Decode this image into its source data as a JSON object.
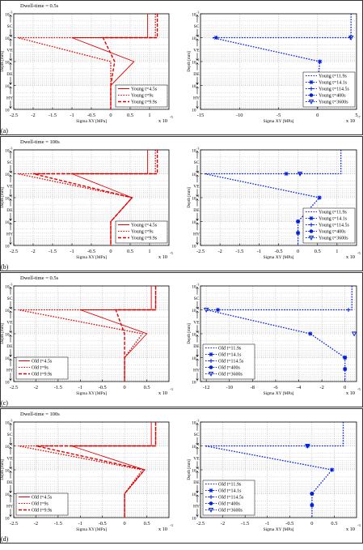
{
  "figure": {
    "panels": [
      {
        "tag": "(a)",
        "dwell": "Dwell-time = 0.5s",
        "x_unit_left": "x 10",
        "x_unit_right": "x 10"
      },
      {
        "tag": "(b)",
        "dwell": "Dwell-time = 100s",
        "x_unit_left": "x 10",
        "x_unit_right": "x 10"
      },
      {
        "tag": "(c)",
        "dwell": "Dwell-time = 0.5s",
        "x_unit_left": "x 10",
        "x_unit_right": "x 10"
      },
      {
        "tag": "(d)",
        "dwell": "Dwell-time = 100s",
        "x_unit_left": "x 10",
        "x_unit_right": "x 10"
      }
    ],
    "xlabel": "Sigma XY [MPa]",
    "ylabel": "Depth [mm]",
    "layers": [
      "SC",
      "VE",
      "DE",
      "HY"
    ]
  },
  "chart_data": [
    {
      "type": "line",
      "panel": "a-left",
      "xlabel": "Sigma XY [MPa]",
      "ylabel": "Depth [mm]",
      "yscale": "log",
      "y_reversed": true,
      "ylim": [
        0.001,
        10
      ],
      "yticks": [
        -3,
        -2,
        -1,
        0,
        1
      ],
      "xlim": [
        -2.5,
        1.5
      ],
      "xticks": [
        -2.5,
        -2,
        -1.5,
        -1,
        -0.5,
        0,
        0.5,
        1
      ],
      "x_exponent": "-5",
      "color": "#e00000",
      "legend_pos": "bottom-right",
      "series": [
        {
          "name": "Young t=4.5s",
          "style": "solid",
          "depth": [
            0.001,
            0.01,
            0.01,
            0.1,
            1,
            10
          ],
          "values": [
            0.95,
            0.95,
            -1.0,
            0.6,
            0,
            0
          ]
        },
        {
          "name": "Young t=9s",
          "style": "dotted",
          "depth": [
            0.001,
            0.01,
            0.01,
            0.1,
            1,
            10
          ],
          "values": [
            1.15,
            1.15,
            -2.4,
            0.0,
            0,
            0
          ]
        },
        {
          "name": "Young t=9.9s",
          "style": "dashed",
          "depth": [
            0.001,
            0.01,
            0.01,
            0.1,
            1,
            10
          ],
          "values": [
            1.2,
            1.2,
            -0.2,
            0.1,
            0,
            0
          ]
        }
      ]
    },
    {
      "type": "line",
      "panel": "a-right",
      "xlabel": "Sigma XY [MPa]",
      "yscale": "log",
      "y_reversed": true,
      "ylim": [
        0.001,
        10
      ],
      "xlim": [
        -15,
        5
      ],
      "xticks": [
        -15,
        -10,
        -5,
        0,
        5
      ],
      "x_exponent": "-7",
      "color": "#0020dd",
      "legend_pos": "bottom-right",
      "series": [
        {
          "name": "Young t=11.9s",
          "style": "dotted",
          "depth": [
            0.001,
            0.01,
            0.01,
            0.1,
            1,
            10
          ],
          "values": [
            4.3,
            4.3,
            -13.5,
            0.3,
            0,
            0
          ]
        },
        {
          "name": "Young t=14.1s",
          "style": "star",
          "depth": [
            0.01,
            0.1,
            1,
            3
          ],
          "values": [
            -13,
            0.3,
            0,
            0
          ]
        },
        {
          "name": "Young t=114.5s",
          "style": "plus",
          "depth": [
            0.01,
            0.1,
            1
          ],
          "values": [
            4.2,
            0.3,
            0
          ]
        },
        {
          "name": "Young t=400s",
          "style": "circle",
          "depth": [
            1,
            3
          ],
          "values": [
            0,
            0
          ]
        },
        {
          "name": "Young t=3600s",
          "style": "triangle",
          "depth": [
            0.01
          ],
          "values": [
            4.3
          ]
        }
      ]
    },
    {
      "type": "line",
      "panel": "b-left",
      "xlabel": "Sigma XY [MPa]",
      "ylabel": "Depth [mm]",
      "yscale": "log",
      "y_reversed": true,
      "ylim": [
        0.001,
        10
      ],
      "xlim": [
        -2.5,
        1.5
      ],
      "xticks": [
        -2.5,
        -2,
        -1.5,
        -1,
        -0.5,
        0,
        0.5,
        1
      ],
      "x_exponent": "-5",
      "color": "#e00000",
      "legend_pos": "bottom-right",
      "series": [
        {
          "name": "Young t=4.5s",
          "style": "solid",
          "depth": [
            0.001,
            0.01,
            0.01,
            0.1,
            1,
            10
          ],
          "values": [
            0.95,
            0.95,
            -1.0,
            0.55,
            0,
            0
          ]
        },
        {
          "name": "Young t=9s",
          "style": "dotted",
          "depth": [
            0.001,
            0.01,
            0.01,
            0.1,
            1,
            10
          ],
          "values": [
            1.15,
            1.15,
            -2.4,
            0.55,
            0,
            0
          ]
        },
        {
          "name": "Young t=9.9s",
          "style": "dashed",
          "depth": [
            0.001,
            0.01,
            0.01,
            0.1,
            1,
            10
          ],
          "values": [
            1.2,
            1.2,
            -2.0,
            0.55,
            0,
            0
          ]
        }
      ]
    },
    {
      "type": "line",
      "panel": "b-right",
      "xlabel": "Sigma XY [MPa]",
      "yscale": "log",
      "y_reversed": true,
      "ylim": [
        0.001,
        10
      ],
      "xlim": [
        -2.5,
        1.5
      ],
      "xticks": [
        -2.5,
        -2,
        -1.5,
        -1,
        -0.5,
        0,
        0.5,
        1
      ],
      "x_exponent": "-5",
      "color": "#0020dd",
      "legend_pos": "bottom-right",
      "series": [
        {
          "name": "Young t=11.9s",
          "style": "dotted",
          "depth": [
            0.001,
            0.01,
            0.01,
            0.1,
            1,
            10
          ],
          "values": [
            1.1,
            1.1,
            -2.4,
            0.55,
            0,
            0
          ]
        },
        {
          "name": "Young t=14.1s",
          "style": "star",
          "depth": [
            0.01,
            0.1,
            1,
            3
          ],
          "values": [
            -0.3,
            0.55,
            0,
            0
          ]
        },
        {
          "name": "Young t=114.5s",
          "style": "plus",
          "depth": [
            0.01,
            0.1,
            1
          ],
          "values": [
            0.05,
            0.55,
            0
          ]
        },
        {
          "name": "Young t=400s",
          "style": "circle",
          "depth": [
            1,
            3
          ],
          "values": [
            0,
            0
          ]
        },
        {
          "name": "Young t=3600s",
          "style": "triangle",
          "depth": [
            0.01
          ],
          "values": [
            0.05
          ]
        }
      ]
    },
    {
      "type": "line",
      "panel": "c-left",
      "xlabel": "Sigma XY [MPa]",
      "ylabel": "Depth [mm]",
      "yscale": "log",
      "y_reversed": true,
      "ylim": [
        0.001,
        10
      ],
      "xlim": [
        -2.5,
        1
      ],
      "xticks": [
        -2.5,
        -2,
        -1.5,
        -1,
        -0.5,
        0,
        0.5
      ],
      "x_exponent": "-3",
      "color": "#e00000",
      "legend_pos": "bottom-left",
      "series": [
        {
          "name": "Old t=4.5s",
          "style": "solid",
          "depth": [
            0.001,
            0.01,
            0.01,
            0.1,
            1,
            10
          ],
          "values": [
            0.6,
            0.6,
            -1.0,
            0.5,
            0,
            0
          ]
        },
        {
          "name": "Old t=9s",
          "style": "dotted",
          "depth": [
            0.001,
            0.01,
            0.01,
            0.1,
            1,
            10
          ],
          "values": [
            0.7,
            0.7,
            -2.4,
            0.4,
            0,
            0
          ]
        },
        {
          "name": "Old t=9.9s",
          "style": "dashed",
          "depth": [
            0.001,
            0.01,
            0.01,
            0.1,
            1,
            10
          ],
          "values": [
            0.7,
            0.7,
            -0.2,
            0.0,
            0,
            0
          ]
        }
      ]
    },
    {
      "type": "line",
      "panel": "c-right",
      "xlabel": "Sigma XY [MPa]",
      "ylabel": "Depth [mm]",
      "yscale": "log",
      "y_reversed": true,
      "ylim": [
        0.001,
        10
      ],
      "xlim": [
        -12.5,
        1
      ],
      "xticks": [
        -12,
        -10,
        -8,
        -6,
        -4,
        -2,
        0
      ],
      "x_exponent": "-5",
      "color": "#0020dd",
      "legend_pos": "bottom-left",
      "series": [
        {
          "name": "Old t=11.9s",
          "style": "dotted",
          "depth": [
            0.001,
            0.01,
            0.01,
            0.1,
            1,
            10
          ],
          "values": [
            0.6,
            0.6,
            -12.0,
            -3.0,
            0,
            0
          ]
        },
        {
          "name": "Old t=14.1s",
          "style": "star",
          "depth": [
            0.01,
            0.1,
            1,
            3
          ],
          "values": [
            -11,
            -3,
            0,
            0
          ]
        },
        {
          "name": "Old t=114.5s",
          "style": "plus",
          "depth": [
            0.01,
            0.1,
            1
          ],
          "values": [
            0.3,
            -3,
            0
          ]
        },
        {
          "name": "Old t=400s",
          "style": "circle",
          "depth": [
            1,
            3
          ],
          "values": [
            0,
            0
          ]
        },
        {
          "name": "Old t=3600s",
          "style": "triangle",
          "depth": [
            0.01,
            0.1
          ],
          "values": [
            -12,
            0.8
          ]
        }
      ]
    },
    {
      "type": "line",
      "panel": "d-left",
      "xlabel": "Sigma XY [MPa]",
      "ylabel": "Depth [mm]",
      "yscale": "log",
      "y_reversed": true,
      "ylim": [
        0.001,
        10
      ],
      "xlim": [
        -2.5,
        1
      ],
      "xticks": [
        -2.5,
        -2,
        -1.5,
        -1,
        -0.5,
        0,
        0.5
      ],
      "x_exponent": "-3",
      "color": "#e00000",
      "legend_pos": "bottom-left",
      "series": [
        {
          "name": "Old t=4.5s",
          "style": "solid",
          "depth": [
            0.001,
            0.01,
            0.01,
            0.1,
            1,
            10
          ],
          "values": [
            0.6,
            0.6,
            -1.2,
            0.45,
            0,
            0
          ]
        },
        {
          "name": "Old t=9s",
          "style": "dotted",
          "depth": [
            0.001,
            0.01,
            0.01,
            0.1,
            1,
            10
          ],
          "values": [
            0.7,
            0.7,
            -2.4,
            0.4,
            0,
            0
          ]
        },
        {
          "name": "Old t=9.9s",
          "style": "dashed",
          "depth": [
            0.001,
            0.01,
            0.01,
            0.1,
            1,
            10
          ],
          "values": [
            0.7,
            0.7,
            -2.0,
            0.45,
            0,
            0
          ]
        }
      ]
    },
    {
      "type": "line",
      "panel": "d-right",
      "xlabel": "Sigma XY [MPa]",
      "yscale": "log",
      "y_reversed": true,
      "ylim": [
        0.001,
        10
      ],
      "xlim": [
        -2.5,
        1
      ],
      "xticks": [
        -2.5,
        -2,
        -1.5,
        -1,
        -0.5,
        0,
        0.5
      ],
      "x_exponent": "-3",
      "color": "#0020dd",
      "legend_pos": "bottom-left",
      "series": [
        {
          "name": "Old t=11.9s",
          "style": "dotted",
          "depth": [
            0.001,
            0.01,
            0.01,
            0.1,
            1,
            10
          ],
          "values": [
            0.7,
            0.7,
            -2.4,
            0.45,
            0,
            0
          ]
        },
        {
          "name": "Old t=14.1s",
          "style": "star",
          "depth": [
            0.01,
            0.1,
            1,
            3
          ],
          "values": [
            -0.1,
            0.45,
            0,
            0
          ]
        },
        {
          "name": "Old t=114.5s",
          "style": "plus",
          "depth": [
            0.01,
            0.1,
            1
          ],
          "values": [
            -0.1,
            0.45,
            0
          ]
        },
        {
          "name": "Old t=400s",
          "style": "circle",
          "depth": [
            1,
            3
          ],
          "values": [
            0,
            0
          ]
        },
        {
          "name": "Old t=3600s",
          "style": "triangle",
          "depth": [
            0.01
          ],
          "values": [
            -0.1
          ]
        }
      ]
    }
  ]
}
